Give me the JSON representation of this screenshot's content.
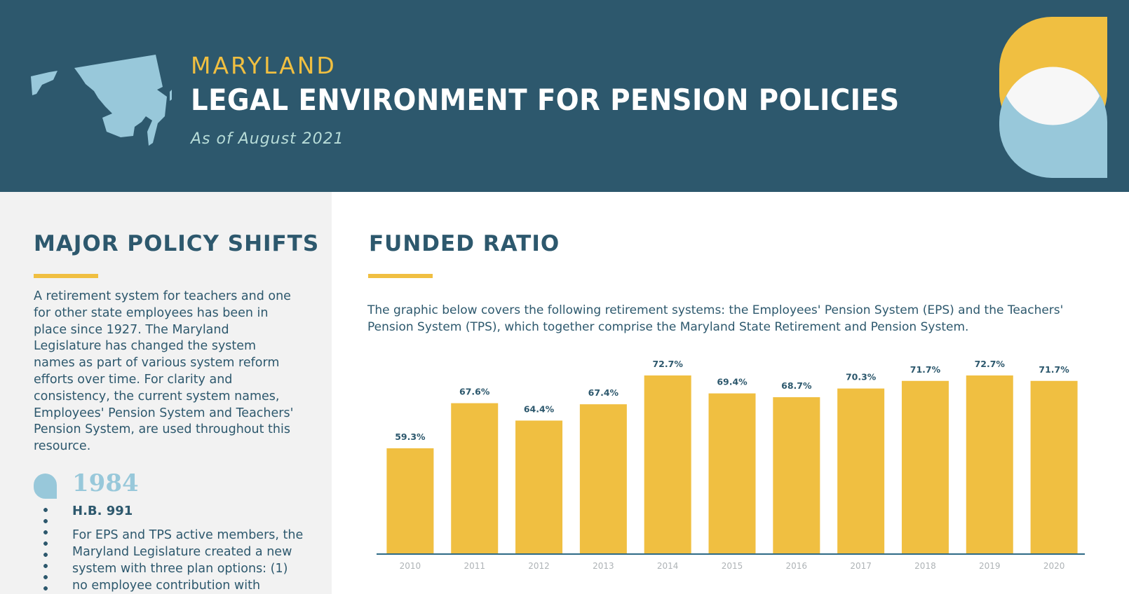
{
  "header": {
    "eyebrow": "MARYLAND",
    "title": "LEGAL ENVIRONMENT FOR PENSION POLICIES",
    "subtitle": "As of August 2021",
    "icons": [
      "maryland-map-icon",
      "brand-logo-icon"
    ]
  },
  "left": {
    "heading": "MAJOR POLICY SHIFTS",
    "intro": "A retirement system for teachers and one for other state employees has been in place since 1927. The Maryland Legislature has changed the system names as part of various system reform efforts over time. For clarity and consistency, the current system names, Employees' Pension System and Teachers' Pension System, are used throughout this resource.",
    "timeline": [
      {
        "year": "1984",
        "bill": "H.B. 991",
        "text": "For EPS and TPS active members, the Maryland Legislature created a new system with three plan options: (1) no employee contribution with"
      }
    ]
  },
  "right": {
    "heading": "FUNDED RATIO",
    "description": "The graphic below covers the following retirement systems: the Employees' Pension System (EPS) and the Teachers' Pension System (TPS), which together comprise the Maryland State Retirement and Pension System."
  },
  "colors": {
    "navy": "#2d586d",
    "gold": "#f0bf41",
    "light_blue": "#98c8da",
    "panel_gray": "#f2f2f2"
  },
  "chart_data": {
    "type": "bar",
    "title": "FUNDED RATIO",
    "xlabel": "",
    "ylabel": "",
    "categories": [
      "2010",
      "2011",
      "2012",
      "2013",
      "2014",
      "2015",
      "2016",
      "2017",
      "2018",
      "2019",
      "2020"
    ],
    "values": [
      59.3,
      67.6,
      64.4,
      67.4,
      72.7,
      69.4,
      68.7,
      70.3,
      71.7,
      72.7,
      71.7
    ],
    "data_labels": [
      "59.3%",
      "67.6%",
      "64.4%",
      "67.4%",
      "72.7%",
      "69.4%",
      "68.7%",
      "70.3%",
      "71.7%",
      "72.7%",
      "71.7%"
    ],
    "ylim": [
      0,
      75
    ],
    "grid": false,
    "legend": "none"
  }
}
